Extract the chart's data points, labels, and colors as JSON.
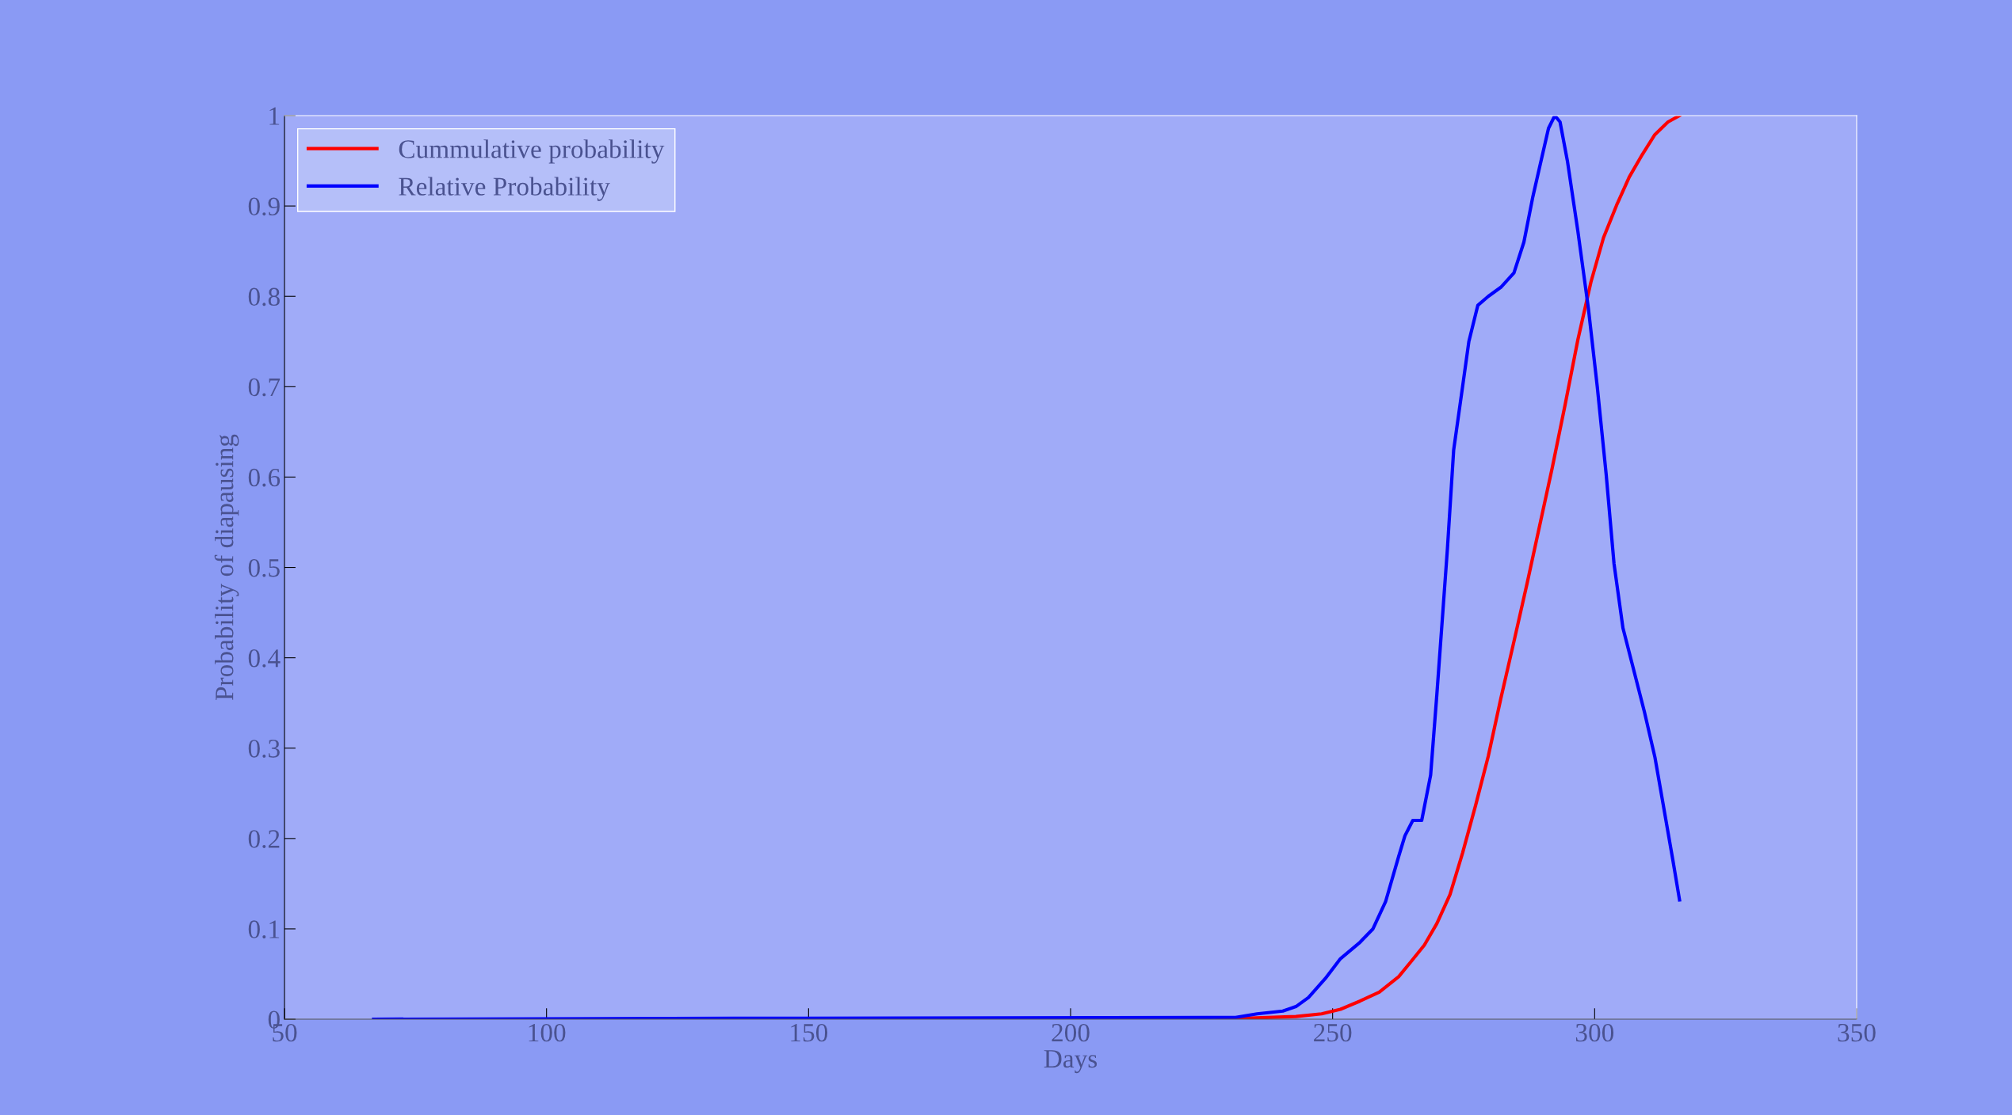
{
  "chart_data": {
    "type": "line",
    "xlabel": "Days",
    "ylabel": "Probability of diapausing",
    "xlim": [
      50,
      350
    ],
    "xticks": [
      50,
      100,
      150,
      200,
      250,
      300,
      350
    ],
    "ylim": [
      0,
      1
    ],
    "yticks": [
      0,
      0.1,
      0.2,
      0.3,
      0.4,
      0.5,
      0.6,
      0.7,
      0.8,
      0.9,
      1
    ],
    "legend": "top left",
    "grid": false,
    "series": [
      {
        "name": "Cummulative probability",
        "color": "#ff0000",
        "x": [
          228,
          243,
          247.9,
          251.5,
          255.2,
          258.9,
          262.6,
          265,
          267.5,
          269.9,
          272.4,
          274.8,
          277.3,
          279.7,
          282.1,
          284.6,
          287.1,
          289.5,
          291.9,
          294.4,
          296.8,
          299.3,
          301.7,
          304.2,
          306.6,
          309.1,
          311.5,
          314,
          316.2
        ],
        "values": [
          0,
          0.003,
          0.006,
          0.011,
          0.02,
          0.03,
          0.047,
          0.064,
          0.082,
          0.106,
          0.138,
          0.184,
          0.237,
          0.291,
          0.355,
          0.418,
          0.482,
          0.546,
          0.61,
          0.681,
          0.752,
          0.816,
          0.865,
          0.901,
          0.932,
          0.957,
          0.979,
          0.993,
          1.0
        ]
      },
      {
        "name": "Relative Probability",
        "color": "#0000ff",
        "x": [
          67,
          136,
          231.5,
          235.6,
          240.5,
          243,
          245.4,
          248.6,
          251.5,
          255.2,
          257.7,
          260.1,
          262.6,
          263.8,
          265.3,
          267,
          268.7,
          269.9,
          271.9,
          273.1,
          274.8,
          276,
          277.7,
          279.7,
          282.1,
          284.6,
          286.5,
          288.2,
          289.5,
          291.2,
          292.4,
          293.4,
          294.8,
          296.8,
          298.8,
          300.5,
          302.2,
          303.7,
          305.4,
          307.3,
          309.5,
          311.5,
          313.4,
          314.9,
          316.2
        ],
        "values": [
          0,
          0.001,
          0.002,
          0.006,
          0.009,
          0.014,
          0.024,
          0.045,
          0.067,
          0.085,
          0.1,
          0.13,
          0.18,
          0.203,
          0.22,
          0.22,
          0.27,
          0.36,
          0.52,
          0.63,
          0.7,
          0.75,
          0.79,
          0.8,
          0.81,
          0.826,
          0.86,
          0.91,
          0.943,
          0.986,
          1.0,
          0.993,
          0.95,
          0.872,
          0.787,
          0.7,
          0.603,
          0.504,
          0.433,
          0.39,
          0.34,
          0.29,
          0.227,
          0.177,
          0.132
        ]
      }
    ]
  }
}
